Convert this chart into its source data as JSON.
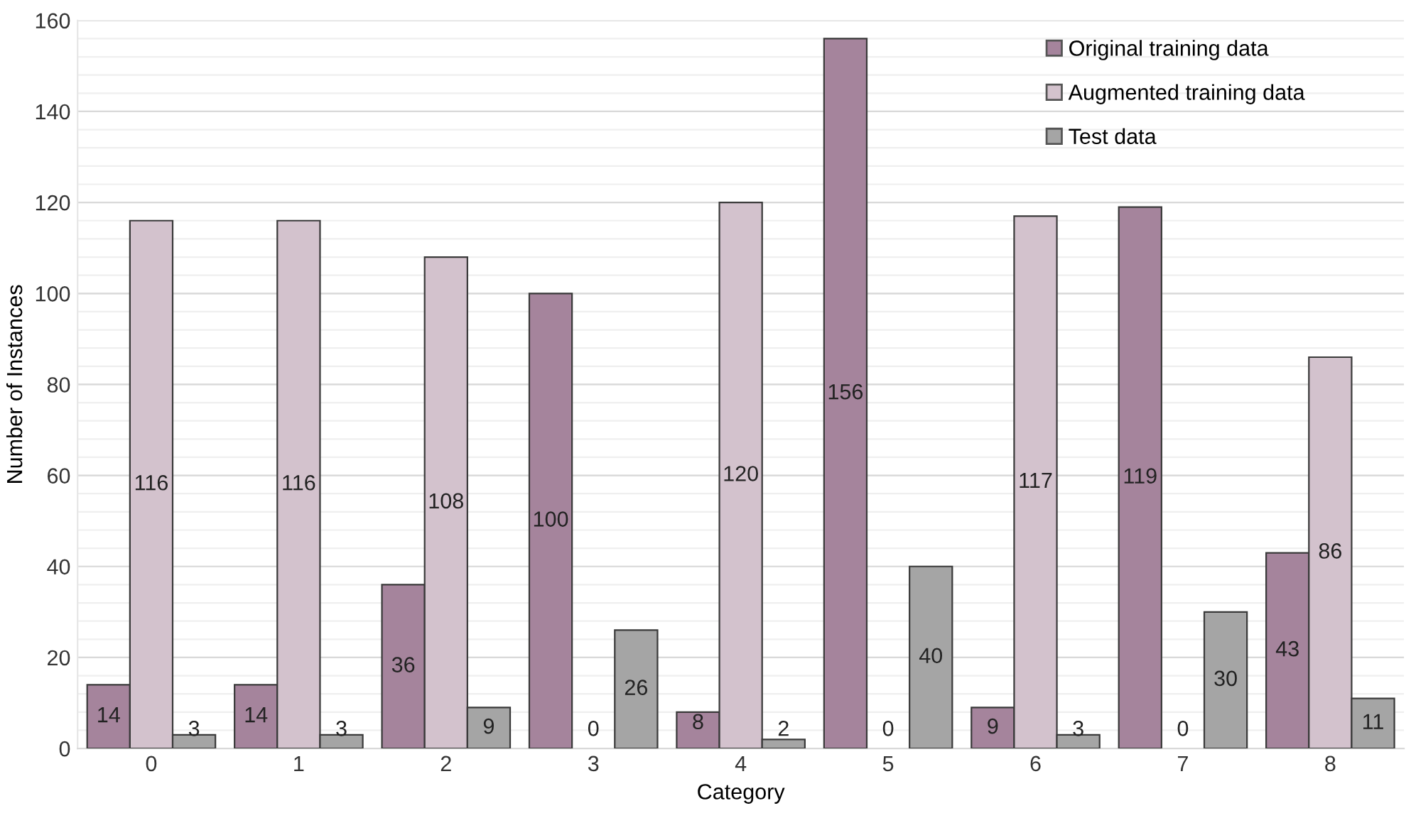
{
  "chart_data": {
    "type": "bar",
    "xlabel": "Category",
    "ylabel": "Number of Instances",
    "categories": [
      "0",
      "1",
      "2",
      "3",
      "4",
      "5",
      "6",
      "7",
      "8"
    ],
    "series": [
      {
        "name": "Original training data",
        "color": "#a5849c",
        "values": [
          14,
          14,
          36,
          100,
          8,
          156,
          9,
          119,
          43
        ]
      },
      {
        "name": "Augmented training data",
        "color": "#d3c2cd",
        "values": [
          116,
          116,
          108,
          0,
          120,
          0,
          117,
          0,
          86
        ]
      },
      {
        "name": "Test data",
        "color": "#a5a5a5",
        "values": [
          3,
          3,
          9,
          26,
          2,
          40,
          3,
          30,
          11
        ]
      }
    ],
    "ylim": [
      0,
      160
    ],
    "yticks": [
      0,
      20,
      40,
      60,
      80,
      100,
      120,
      140,
      160
    ],
    "grid": "y",
    "legend": "top right",
    "data_labels": true
  }
}
